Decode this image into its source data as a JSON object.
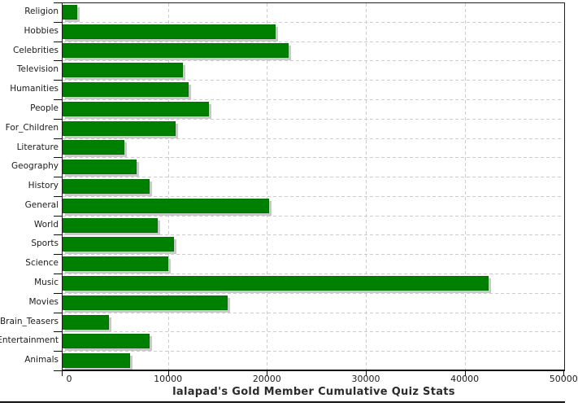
{
  "chart_data": {
    "type": "bar",
    "orientation": "horizontal",
    "title": "lalapad's Gold Member Cumulative Quiz Stats",
    "categories": [
      "Religion",
      "Hobbies",
      "Celebrities",
      "Television",
      "Humanities",
      "People",
      "For_Children",
      "Literature",
      "Geography",
      "History",
      "General",
      "World",
      "Sports",
      "Science",
      "Music",
      "Movies",
      "Brain_Teasers",
      "Entertainment",
      "Animals"
    ],
    "values": [
      800,
      20900,
      22200,
      11500,
      12100,
      14100,
      10800,
      5600,
      6800,
      8100,
      20200,
      9000,
      10600,
      10000,
      42400,
      16000,
      4000,
      8100,
      6200
    ],
    "xlim": [
      0,
      50000
    ],
    "x_ticks": [
      0,
      10000,
      20000,
      30000,
      40000,
      50000
    ],
    "x_tick_labels": [
      "0",
      "10000",
      "20000",
      "30000",
      "40000",
      "50000"
    ],
    "grid": "dashed-both-axes",
    "legend": "none",
    "colors": {
      "bar_fill": "#008000",
      "bar_shadow": "#c9c9c9",
      "gridline": "#cccccc",
      "axis": "#111111",
      "text": "#1c1c1c"
    }
  }
}
